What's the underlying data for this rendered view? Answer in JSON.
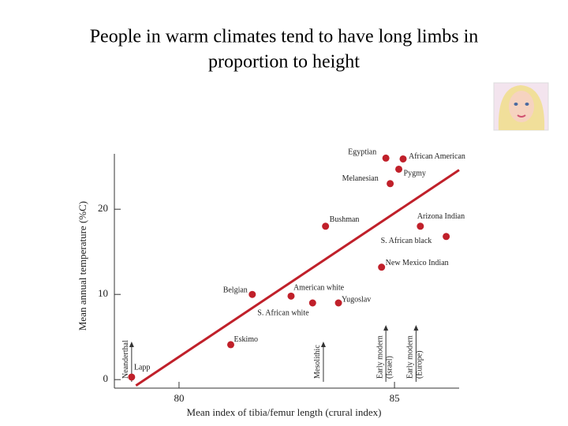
{
  "chart_data": {
    "type": "scatter",
    "title": [
      "People in warm climates tend to have long limbs in",
      "proportion to height"
    ],
    "x_label": "Mean index of tibia/femur length (crural index)",
    "y_label": "Mean annual temperature (%C)",
    "labels": [
      "Lapp",
      "Eskimo",
      "Belgian",
      "American white",
      "S. African white",
      "Yugoslav",
      "Bushman",
      "New Mexico Indian",
      "Arizona Indian",
      "S. African black",
      "Melanesian",
      "Pygmy",
      "Egyptian",
      "African American"
    ],
    "x": [
      78.9,
      81.2,
      81.7,
      82.6,
      83.1,
      83.7,
      83.4,
      84.7,
      85.6,
      86.2,
      84.9,
      85.1,
      84.8,
      85.2
    ],
    "values": [
      0.3,
      4.1,
      10.0,
      9.8,
      9.0,
      9.0,
      18.0,
      13.2,
      18.0,
      16.8,
      23.0,
      24.7,
      26.0,
      25.9
    ],
    "color": "#c0202a",
    "trend_line": {
      "x": [
        79.0,
        86.5
      ],
      "y": [
        -0.7,
        24.6
      ],
      "color": "#c0202a"
    },
    "markers": [
      {
        "label": [
          "Neanderthal"
        ],
        "x": 78.9
      },
      {
        "label": [
          "Mesolithic"
        ],
        "x": 83.35
      },
      {
        "label": [
          "Early modern",
          "(Israel)"
        ],
        "x": 84.8
      },
      {
        "label": [
          "Early modern",
          "(Europe)"
        ],
        "x": 85.5
      }
    ],
    "xlim": [
      78.5,
      86.5
    ],
    "ylim": [
      -1,
      26.5
    ],
    "xticks": [
      80,
      85
    ],
    "yticks": [
      0,
      10,
      20
    ]
  }
}
